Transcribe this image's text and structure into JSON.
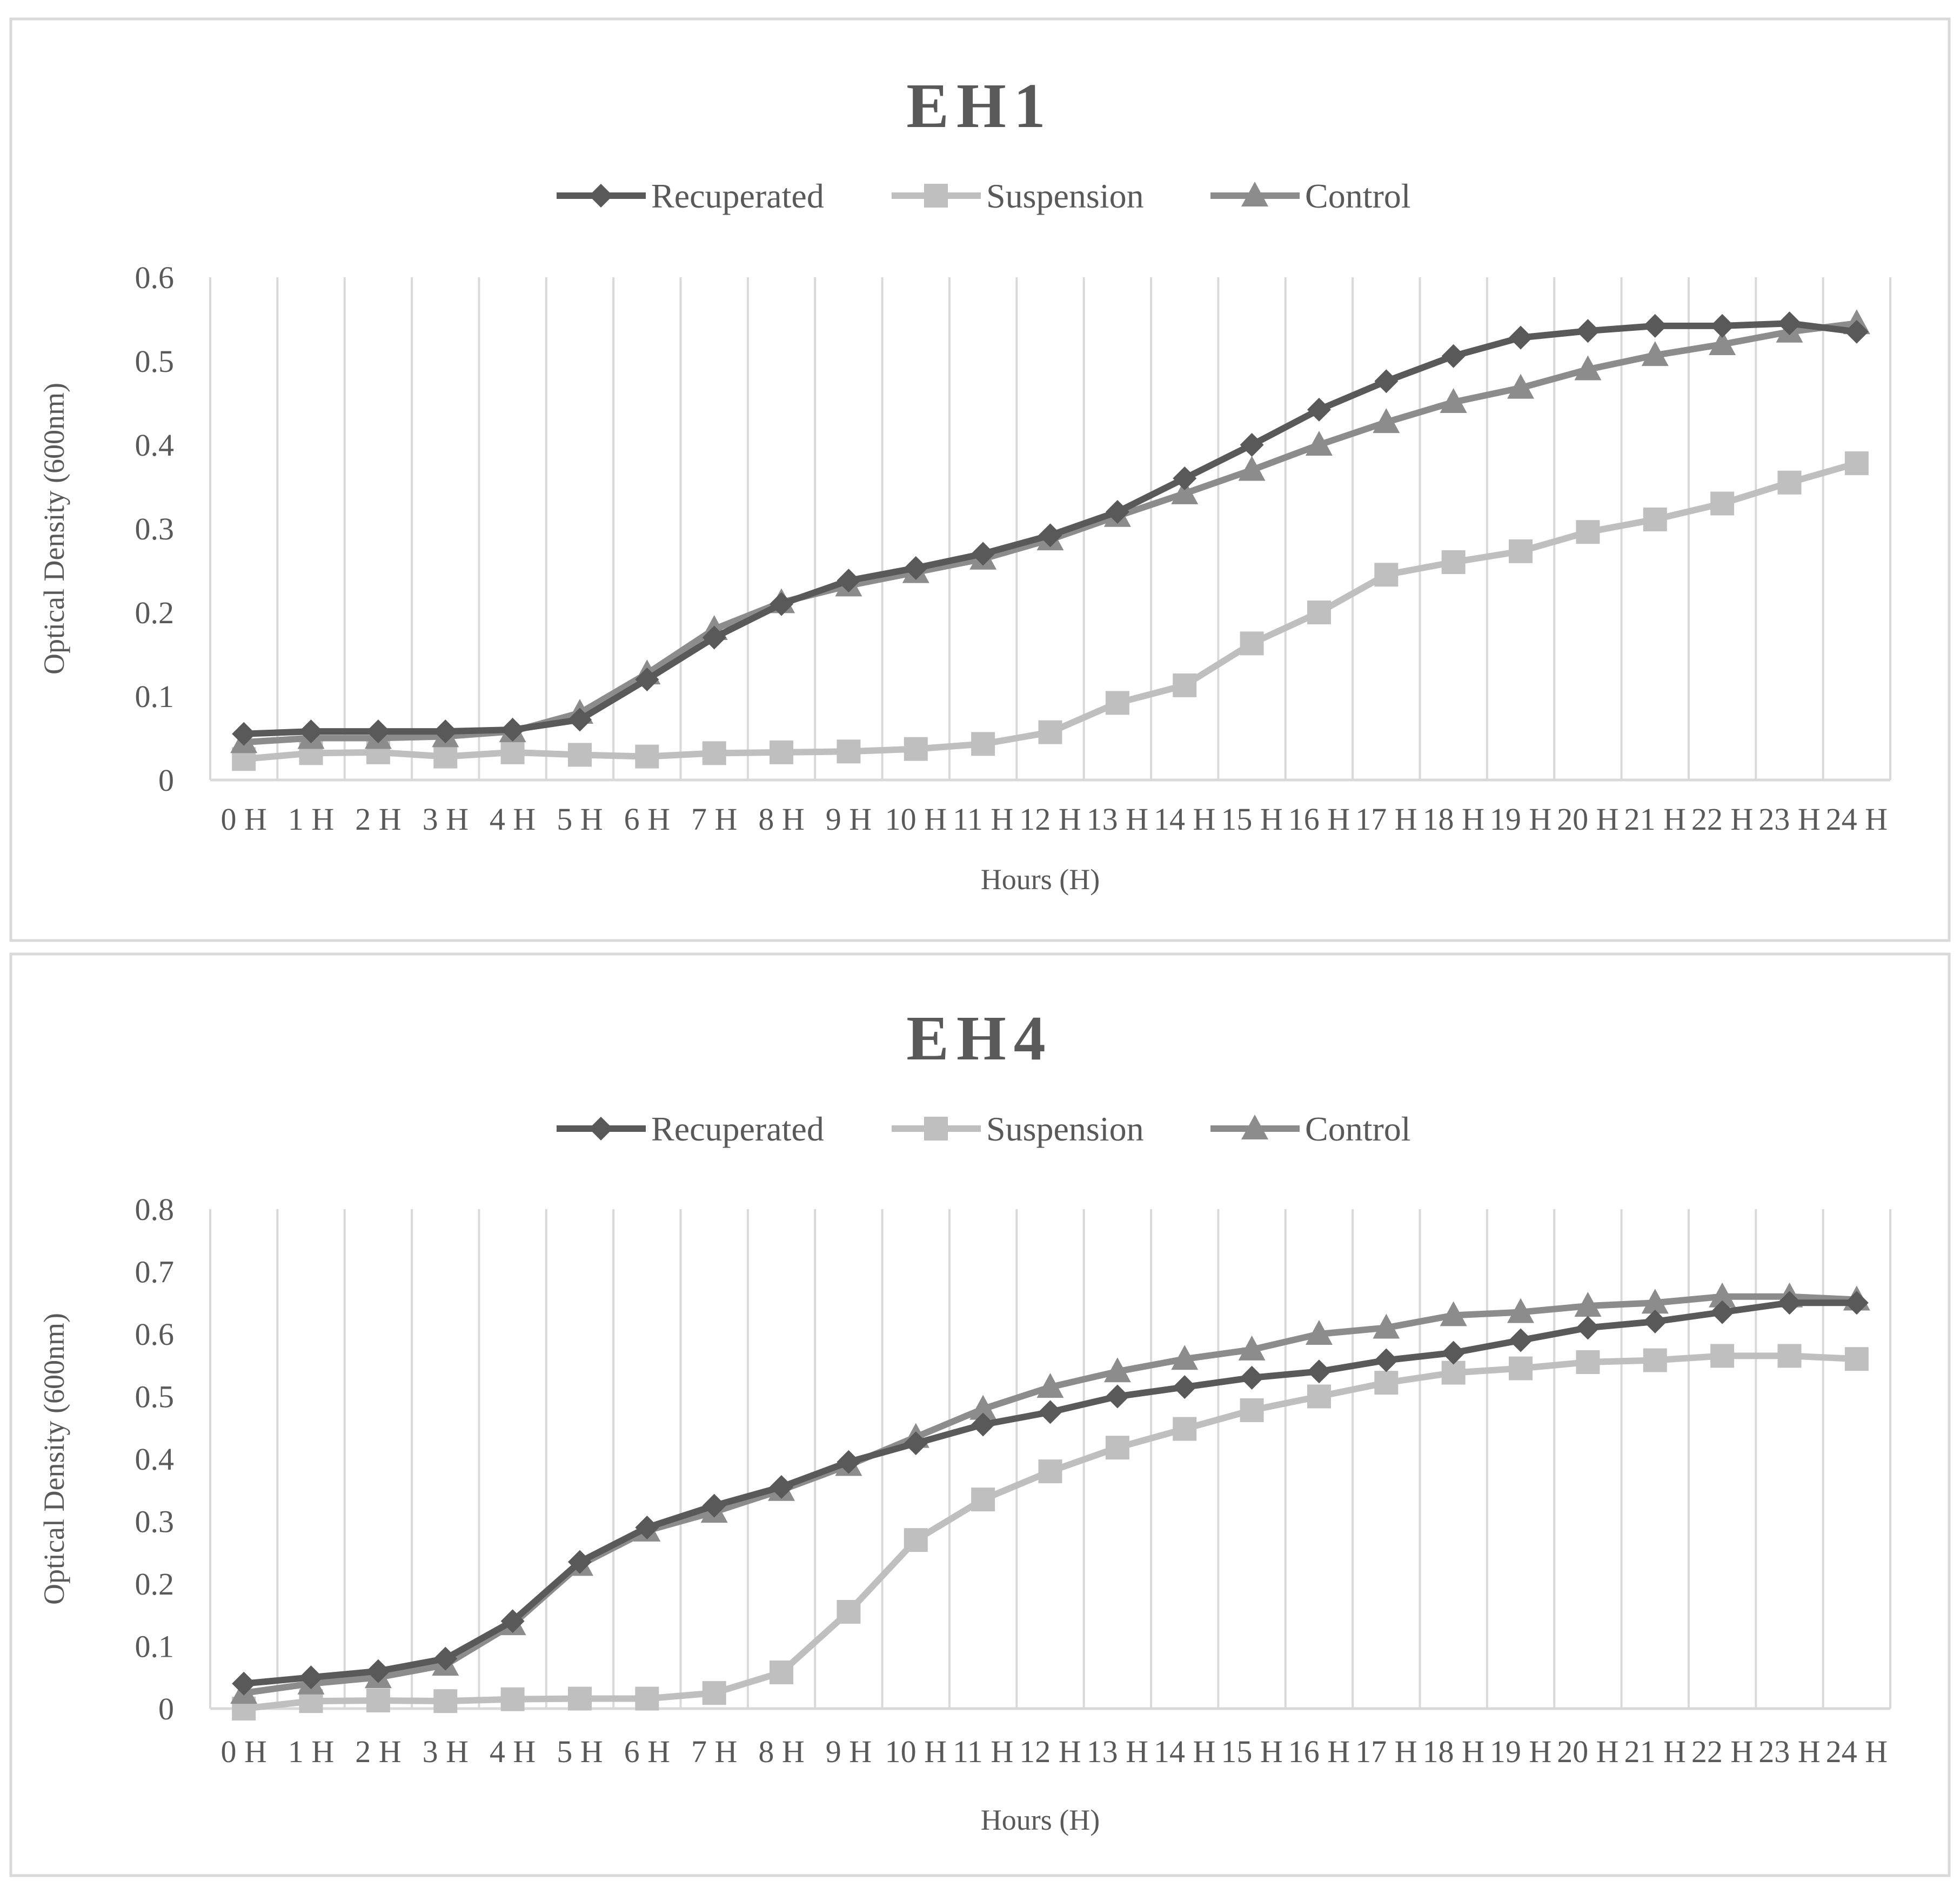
{
  "chart_data": [
    {
      "type": "line",
      "title": "EH1",
      "xlabel": "Hours (H)",
      "ylabel": "Optical Density (600nm)",
      "ylim": [
        0,
        0.6
      ],
      "yticks": [
        "0",
        "0.1",
        "0.2",
        "0.3",
        "0.4",
        "0.5",
        "0.6"
      ],
      "grid": "vertical",
      "legend_position": "top",
      "categories": [
        "0 H",
        "1 H",
        "2 H",
        "3 H",
        "4 H",
        "5 H",
        "6 H",
        "7 H",
        "8 H",
        "9 H",
        "10 H",
        "11 H",
        "12 H",
        "13 H",
        "14 H",
        "15 H",
        "16 H",
        "17 H",
        "18 H",
        "19 H",
        "20 H",
        "21 H",
        "22 H",
        "23 H",
        "24 H"
      ],
      "series": [
        {
          "name": "Recuperated",
          "marker": "diamond",
          "color": "#595959",
          "values": [
            0.055,
            0.058,
            0.058,
            0.058,
            0.06,
            0.072,
            0.12,
            0.17,
            0.21,
            0.238,
            0.253,
            0.27,
            0.292,
            0.32,
            0.36,
            0.4,
            0.442,
            0.476,
            0.506,
            0.528,
            0.536,
            0.542,
            0.542,
            0.545,
            0.535
          ]
        },
        {
          "name": "Suspension",
          "marker": "square",
          "color": "#bfbfbf",
          "values": [
            0.025,
            0.032,
            0.033,
            0.028,
            0.033,
            0.03,
            0.028,
            0.032,
            0.033,
            0.034,
            0.037,
            0.043,
            0.057,
            0.092,
            0.113,
            0.163,
            0.2,
            0.245,
            0.26,
            0.273,
            0.296,
            0.311,
            0.33,
            0.355,
            0.378
          ]
        },
        {
          "name": "Control",
          "marker": "triangle",
          "color": "#8c8c8c",
          "values": [
            0.045,
            0.05,
            0.05,
            0.052,
            0.058,
            0.08,
            0.127,
            0.18,
            0.212,
            0.232,
            0.248,
            0.264,
            0.287,
            0.315,
            0.342,
            0.37,
            0.4,
            0.427,
            0.451,
            0.468,
            0.49,
            0.507,
            0.52,
            0.535,
            0.545
          ]
        }
      ]
    },
    {
      "type": "line",
      "title": "EH4",
      "xlabel": "Hours (H)",
      "ylabel": "Optical Density (600nm)",
      "ylim": [
        0,
        0.8
      ],
      "yticks": [
        "0",
        "0.1",
        "0.2",
        "0.3",
        "0.4",
        "0.5",
        "0.6",
        "0.7",
        "0.8"
      ],
      "grid": "vertical",
      "legend_position": "top",
      "categories": [
        "0 H",
        "1 H",
        "2 H",
        "3 H",
        "4 H",
        "5 H",
        "6 H",
        "7 H",
        "8 H",
        "9 H",
        "10 H",
        "11 H",
        "12 H",
        "13 H",
        "14 H",
        "15 H",
        "16 H",
        "17 H",
        "18 H",
        "19 H",
        "20 H",
        "21 H",
        "22 H",
        "23 H",
        "24 H"
      ],
      "series": [
        {
          "name": "Recuperated",
          "marker": "diamond",
          "color": "#595959",
          "values": [
            0.04,
            0.05,
            0.06,
            0.08,
            0.14,
            0.235,
            0.29,
            0.325,
            0.355,
            0.395,
            0.425,
            0.455,
            0.475,
            0.5,
            0.515,
            0.53,
            0.54,
            0.558,
            0.57,
            0.59,
            0.61,
            0.62,
            0.635,
            0.65,
            0.65
          ]
        },
        {
          "name": "Suspension",
          "marker": "square",
          "color": "#bfbfbf",
          "values": [
            0.0,
            0.012,
            0.013,
            0.012,
            0.015,
            0.016,
            0.016,
            0.025,
            0.058,
            0.155,
            0.27,
            0.335,
            0.38,
            0.418,
            0.448,
            0.478,
            0.5,
            0.522,
            0.538,
            0.545,
            0.555,
            0.558,
            0.565,
            0.565,
            0.56
          ]
        },
        {
          "name": "Control",
          "marker": "triangle",
          "color": "#8c8c8c",
          "values": [
            0.025,
            0.04,
            0.05,
            0.07,
            0.135,
            0.23,
            0.285,
            0.315,
            0.35,
            0.39,
            0.435,
            0.48,
            0.515,
            0.54,
            0.56,
            0.575,
            0.6,
            0.61,
            0.63,
            0.635,
            0.645,
            0.65,
            0.66,
            0.66,
            0.655
          ]
        }
      ]
    }
  ]
}
